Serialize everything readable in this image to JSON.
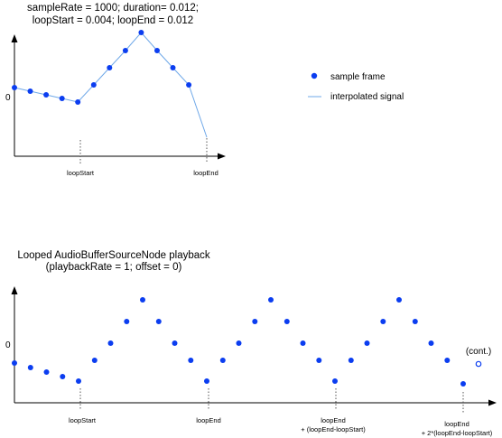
{
  "top": {
    "title_lines": [
      "sampleRate = 1000; duration= 0.012;",
      "loopStart = 0.004; loopEnd = 0.012"
    ],
    "zero_label": "0",
    "marker_labels": [
      "loopStart",
      "loopEnd"
    ],
    "sample_values": [
      0.1,
      0.06,
      0.02,
      -0.02,
      -0.06,
      0.13,
      0.32,
      0.51,
      0.71,
      0.51,
      0.32,
      0.13
    ]
  },
  "legend": {
    "sample_label": "sample frame",
    "signal_label": "interpolated signal"
  },
  "bottom": {
    "title_lines": [
      "Looped AudioBufferSourceNode playback",
      "(playbackRate = 1; offset = 0)"
    ],
    "zero_label": "0",
    "marker_labels": [
      [
        "loopStart"
      ],
      [
        "loopEnd"
      ],
      [
        "loopEnd",
        "+ (loopEnd-loopStart)"
      ],
      [
        "loopEnd",
        "+ 2*(loopEnd-loopStart)"
      ]
    ],
    "cont_label": "(cont.)",
    "sample_values": [
      -0.22,
      -0.27,
      -0.32,
      -0.37,
      -0.42,
      -0.19,
      0.0,
      0.24,
      0.48,
      0.24,
      0.0,
      -0.19,
      -0.42,
      -0.19,
      0.0,
      0.24,
      0.48,
      0.24,
      0.0,
      -0.19,
      -0.42,
      -0.19,
      0.0,
      0.24,
      0.48,
      0.24,
      0.0,
      -0.19,
      -0.45
    ],
    "cont_value": -0.19
  },
  "colors": {
    "sample": "#0b3df0",
    "signal": "#6fa8e8",
    "axis": "#000000",
    "marker": "#555555"
  }
}
